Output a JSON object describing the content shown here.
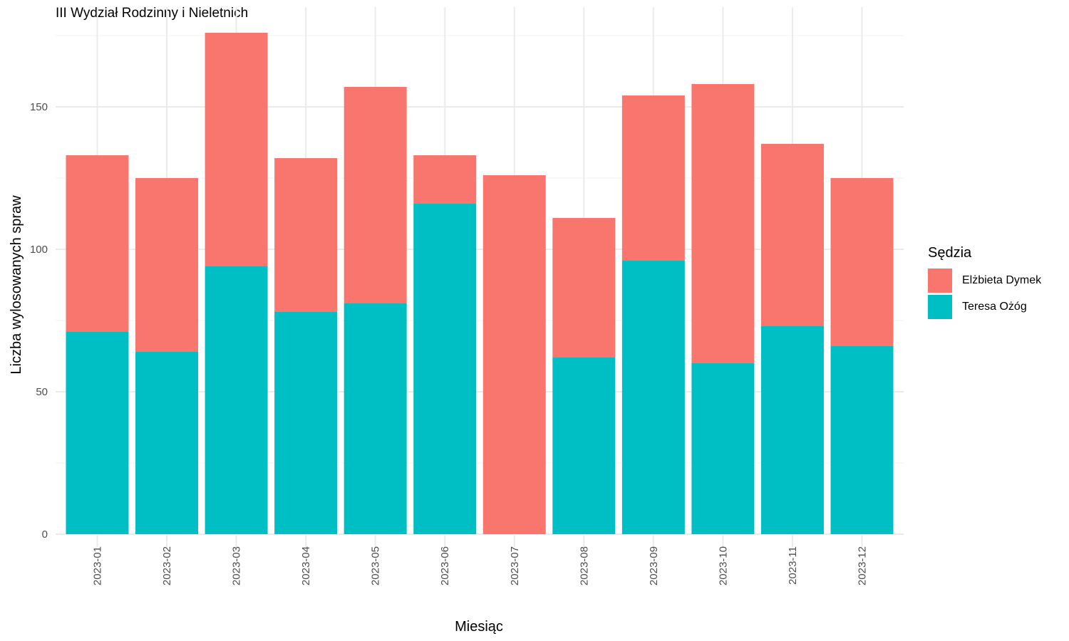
{
  "chart_data": {
    "type": "bar",
    "stacked": true,
    "title": "III Wydział Rodzinny i Nieletnich",
    "xlabel": "Miesiąc",
    "ylabel": "Liczba wylosowanych spraw",
    "ylim": [
      0,
      180
    ],
    "yticks": [
      0,
      50,
      100,
      150
    ],
    "ytick_labels": [
      "0",
      "50",
      "100",
      "150"
    ],
    "grid": true,
    "legend": {
      "title": "Sędzia",
      "position": "right"
    },
    "categories": [
      "2023-01",
      "2023-02",
      "2023-03",
      "2023-04",
      "2023-05",
      "2023-06",
      "2023-07",
      "2023-08",
      "2023-09",
      "2023-10",
      "2023-11",
      "2023-12"
    ],
    "series": [
      {
        "name": "Teresa Ożóg",
        "color": "#00BFC4",
        "values": [
          71,
          64,
          94,
          78,
          81,
          116,
          0,
          62,
          96,
          60,
          73,
          66
        ]
      },
      {
        "name": "Elżbieta Dymek",
        "color": "#F8766D",
        "values": [
          62,
          61,
          82,
          54,
          76,
          17,
          126,
          49,
          58,
          98,
          64,
          59
        ]
      }
    ]
  }
}
